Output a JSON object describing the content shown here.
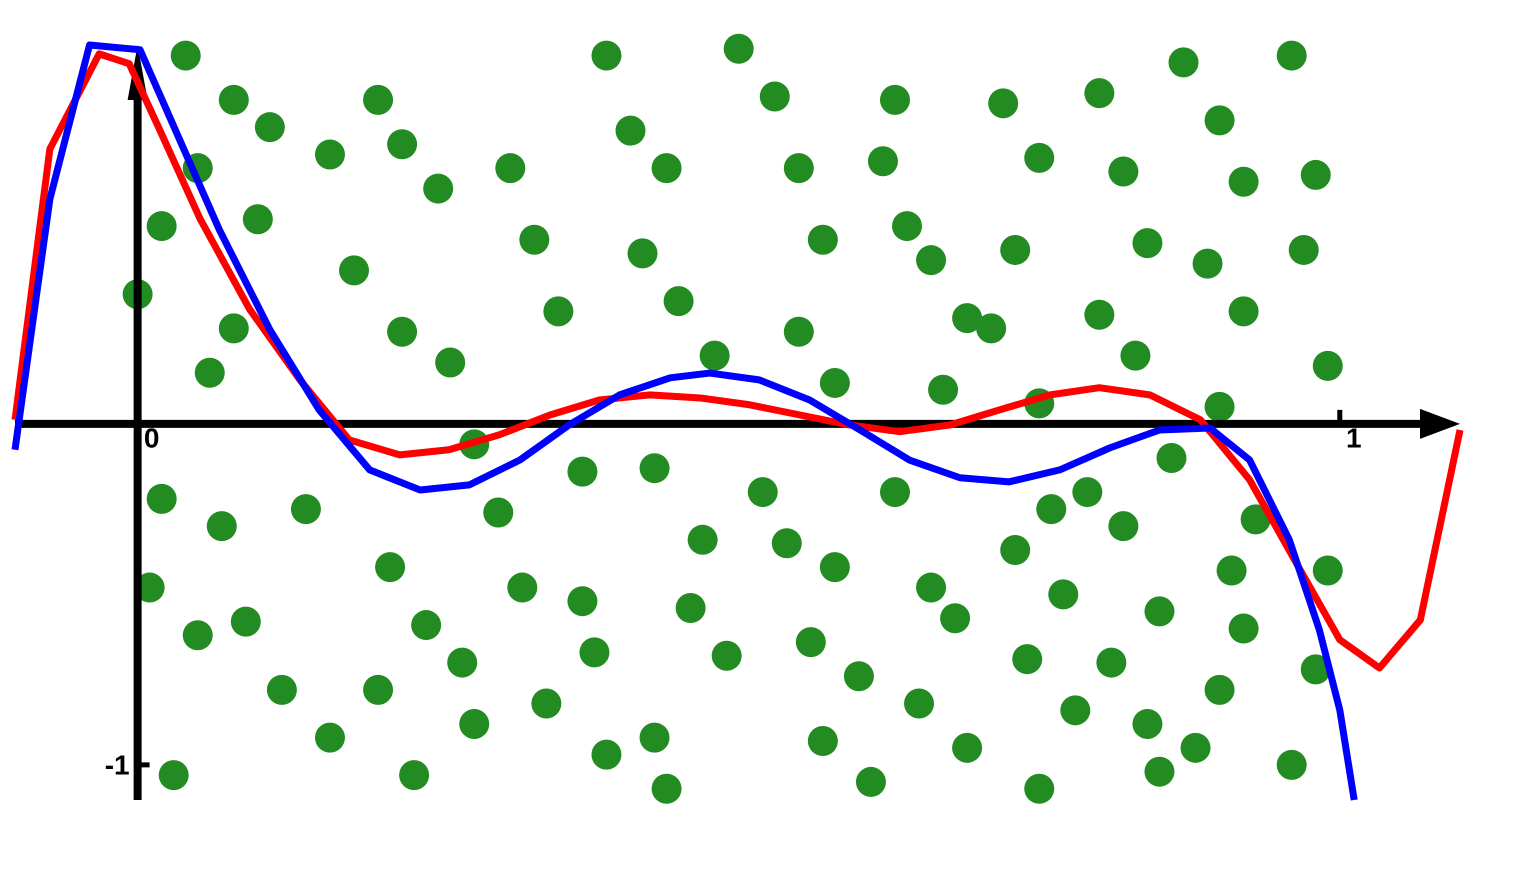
{
  "chart_data": {
    "type": "scatter",
    "xlim": [
      -0.102,
      1.1
    ],
    "ylim": [
      -1.103,
      1.111
    ],
    "xticks": [
      0,
      1
    ],
    "yticks": [
      -1
    ],
    "grid": false,
    "series": [
      {
        "type": "scatter",
        "color": "#228b22",
        "x": [
          0.04,
          0.08,
          0.02,
          0.0,
          0.05,
          0.11,
          0.08,
          0.02,
          0.01,
          0.05,
          0.03,
          0.09,
          0.12,
          0.14,
          0.16,
          0.2,
          0.22,
          0.25,
          0.18,
          0.22,
          0.26,
          0.28,
          0.3,
          0.21,
          0.24,
          0.2,
          0.16,
          0.23,
          0.28,
          0.31,
          0.33,
          0.35,
          0.37,
          0.32,
          0.37,
          0.38,
          0.34,
          0.39,
          0.39,
          0.41,
          0.44,
          0.42,
          0.45,
          0.48,
          0.43,
          0.47,
          0.46,
          0.49,
          0.43,
          0.44,
          0.5,
          0.53,
          0.55,
          0.57,
          0.55,
          0.58,
          0.54,
          0.58,
          0.56,
          0.6,
          0.57,
          0.61,
          0.62,
          0.64,
          0.66,
          0.69,
          0.67,
          0.63,
          0.66,
          0.68,
          0.65,
          0.69,
          0.72,
          0.75,
          0.73,
          0.71,
          0.75,
          0.76,
          0.73,
          0.77,
          0.74,
          0.78,
          0.75,
          0.8,
          0.82,
          0.84,
          0.8,
          0.83,
          0.86,
          0.82,
          0.85,
          0.81,
          0.84,
          0.85,
          0.87,
          0.9,
          0.92,
          0.89,
          0.92,
          0.9,
          0.93,
          0.91,
          0.92,
          0.9,
          0.88,
          0.96,
          0.98,
          0.97,
          0.99,
          0.99,
          0.98,
          0.96,
          0.1,
          0.06,
          0.27,
          0.52,
          0.63,
          0.79,
          0.07
        ],
        "values": [
          1.08,
          0.95,
          0.58,
          0.38,
          0.75,
          0.87,
          0.28,
          -0.22,
          -0.48,
          -0.62,
          -1.03,
          -0.58,
          -0.78,
          -0.25,
          0.79,
          0.95,
          0.82,
          0.69,
          0.45,
          0.27,
          0.18,
          -0.06,
          -0.26,
          -0.42,
          -0.59,
          -0.78,
          -0.92,
          -1.03,
          -0.88,
          0.75,
          0.54,
          0.33,
          -0.14,
          -0.48,
          -0.52,
          -0.67,
          -0.82,
          -0.97,
          1.08,
          0.86,
          0.75,
          0.5,
          0.36,
          0.2,
          -0.13,
          -0.34,
          -0.54,
          -0.68,
          -0.92,
          -1.07,
          1.1,
          0.96,
          0.75,
          0.54,
          0.27,
          0.12,
          -0.35,
          -0.42,
          -0.64,
          -0.74,
          -0.93,
          -1.05,
          0.77,
          0.58,
          0.48,
          0.31,
          0.1,
          -0.2,
          -0.48,
          -0.57,
          -0.82,
          -0.95,
          0.94,
          0.78,
          0.51,
          0.28,
          0.06,
          -0.25,
          -0.37,
          -0.5,
          -0.69,
          -0.84,
          -1.07,
          0.97,
          0.74,
          0.53,
          0.32,
          0.2,
          -0.1,
          -0.3,
          -0.55,
          -0.7,
          -0.88,
          -1.02,
          1.06,
          0.89,
          0.71,
          0.47,
          0.33,
          0.05,
          -0.28,
          -0.43,
          -0.6,
          -0.78,
          -0.95,
          1.08,
          0.73,
          0.51,
          0.17,
          -0.43,
          -0.72,
          -1.0,
          0.6,
          0.15,
          -0.7,
          -0.2,
          0.95,
          -0.2,
          -0.3
        ]
      },
      {
        "type": "line",
        "color": "#ff0000",
        "x": [
          -0.102,
          -0.073,
          -0.032,
          -0.007,
          0.018,
          0.052,
          0.093,
          0.135,
          0.176,
          0.218,
          0.259,
          0.301,
          0.343,
          0.384,
          0.426,
          0.468,
          0.509,
          0.551,
          0.592,
          0.634,
          0.676,
          0.717,
          0.759,
          0.8,
          0.842,
          0.884,
          0.925,
          0.967,
          1.0,
          1.033,
          1.067,
          1.1
        ],
        "values": [
          0.012,
          0.806,
          1.085,
          1.056,
          0.865,
          0.601,
          0.337,
          0.129,
          -0.047,
          -0.091,
          -0.076,
          -0.032,
          0.026,
          0.07,
          0.085,
          0.076,
          0.056,
          0.026,
          -0.003,
          -0.023,
          -0.003,
          0.041,
          0.085,
          0.106,
          0.085,
          0.012,
          -0.164,
          -0.428,
          -0.633,
          -0.716,
          -0.575,
          -0.018
        ]
      },
      {
        "type": "line",
        "color": "#0000ff",
        "x": [
          -0.102,
          -0.073,
          -0.04,
          0.002,
          0.035,
          0.068,
          0.11,
          0.151,
          0.193,
          0.235,
          0.276,
          0.318,
          0.359,
          0.401,
          0.443,
          0.476,
          0.517,
          0.559,
          0.601,
          0.642,
          0.684,
          0.725,
          0.767,
          0.809,
          0.85,
          0.892,
          0.925,
          0.958,
          0.983,
          1.0,
          1.012
        ],
        "values": [
          -0.076,
          0.659,
          1.111,
          1.097,
          0.833,
          0.569,
          0.276,
          0.041,
          -0.135,
          -0.194,
          -0.179,
          -0.106,
          -0.003,
          0.085,
          0.135,
          0.149,
          0.129,
          0.07,
          -0.018,
          -0.106,
          -0.158,
          -0.17,
          -0.135,
          -0.07,
          -0.018,
          -0.012,
          -0.106,
          -0.34,
          -0.604,
          -0.839,
          -1.103
        ]
      }
    ]
  }
}
